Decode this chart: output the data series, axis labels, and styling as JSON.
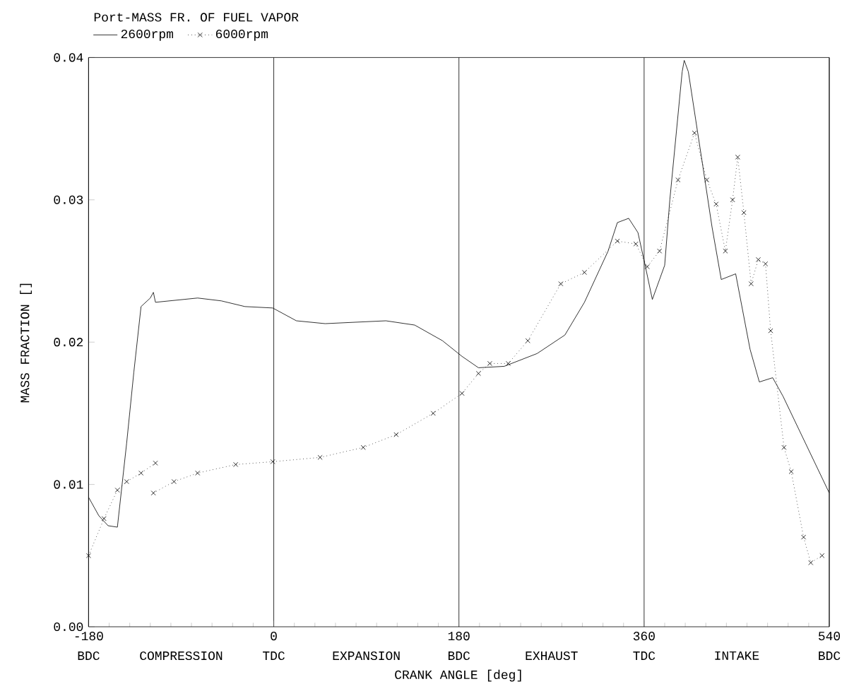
{
  "chart_data": {
    "type": "line",
    "title": "Port-MASS FR. OF FUEL VAPOR",
    "xlabel": "CRANK ANGLE [deg]",
    "ylabel": "MASS FRACTION []",
    "xlim": [
      -180,
      540
    ],
    "ylim": [
      0,
      0.04
    ],
    "xticks": [
      -180,
      0,
      180,
      360,
      540
    ],
    "yticks": [
      {
        "value": 0,
        "label": "0.00"
      },
      {
        "value": 0.01,
        "label": "0.01"
      },
      {
        "value": 0.02,
        "label": "0.02"
      },
      {
        "value": 0.03,
        "label": "0.03"
      },
      {
        "value": 0.04,
        "label": "0.04"
      }
    ],
    "grid": "x",
    "legend": "top left",
    "annotations": [
      "BDC",
      "COMPRESSION",
      "TDC",
      "EXPANSION",
      "BDC",
      "EXHAUST",
      "TDC",
      "INTAKE",
      "BDC"
    ],
    "series": [
      {
        "name": "2600rpm",
        "color": "#000000",
        "marker": "none",
        "line_style": "solid",
        "x": [
          -180,
          -170,
          -161,
          -152,
          -143,
          -136,
          -129,
          -120,
          -117,
          -115,
          -74,
          -51,
          -28,
          -1,
          22,
          50,
          109,
          137,
          164,
          183,
          199,
          224,
          256,
          283,
          302,
          325,
          334,
          345,
          354,
          361,
          368,
          380,
          385,
          397,
          399,
          403,
          417,
          426,
          435,
          449,
          463,
          472,
          485,
          495,
          540
        ],
        "values": [
          0.0091,
          0.0078,
          0.0071,
          0.007,
          0.0129,
          0.0179,
          0.0225,
          0.0231,
          0.0235,
          0.0228,
          0.0231,
          0.0229,
          0.0225,
          0.0224,
          0.0215,
          0.0213,
          0.0215,
          0.0212,
          0.0201,
          0.019,
          0.0182,
          0.0183,
          0.0192,
          0.0205,
          0.0228,
          0.0264,
          0.0284,
          0.0287,
          0.0277,
          0.0254,
          0.023,
          0.0254,
          0.03,
          0.039,
          0.0398,
          0.039,
          0.0324,
          0.0281,
          0.0244,
          0.0248,
          0.0195,
          0.0172,
          0.0175,
          0.0162,
          0.0094
        ]
      },
      {
        "name": "6000rpm",
        "color": "#000000",
        "marker": "cross",
        "line_style": "dotted",
        "x": [
          -180,
          -165,
          -152,
          -143,
          -129,
          -115,
          -116,
          -117,
          -97,
          -74,
          -37,
          -1,
          45,
          87,
          119,
          155,
          183,
          199,
          210,
          228,
          247,
          279,
          302,
          334,
          352,
          363,
          375,
          393,
          409,
          421,
          430,
          439,
          446,
          451,
          457,
          464,
          471,
          478,
          483,
          496,
          503,
          515,
          522,
          533
        ],
        "values": [
          0.005,
          0.0076,
          0.0096,
          0.0102,
          0.0108,
          0.0115,
          null,
          0.0094,
          0.0102,
          0.0108,
          0.0114,
          0.0116,
          0.0119,
          0.0126,
          0.0135,
          0.015,
          0.0164,
          0.0178,
          0.0185,
          0.0185,
          0.0201,
          0.0241,
          0.0249,
          0.0271,
          0.0269,
          0.0253,
          0.0264,
          0.0314,
          0.0347,
          0.0314,
          0.0297,
          0.0264,
          0.03,
          0.033,
          0.0291,
          0.0241,
          0.0258,
          0.0255,
          0.0208,
          0.0126,
          0.0109,
          0.0063,
          0.0045,
          0.005
        ]
      }
    ]
  }
}
